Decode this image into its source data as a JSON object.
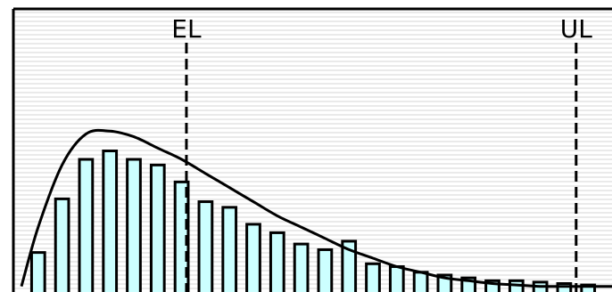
{
  "chart_data": {
    "type": "bar",
    "grid": true,
    "colors": {
      "bar_fill": "#ccffff",
      "bar_stroke": "#000000",
      "grid": "#d4d4d4",
      "curve": "#000000"
    },
    "xlim": [
      0,
      25
    ],
    "ylim": [
      0,
      1.0
    ],
    "bars": {
      "x": [
        1,
        2,
        3,
        4,
        5,
        6,
        7,
        8,
        9,
        10,
        11,
        12,
        13,
        14,
        15,
        16,
        17,
        18,
        19,
        20,
        21,
        22,
        23,
        24
      ],
      "values": [
        0.14,
        0.33,
        0.47,
        0.5,
        0.47,
        0.45,
        0.39,
        0.32,
        0.3,
        0.24,
        0.21,
        0.17,
        0.15,
        0.18,
        0.1,
        0.09,
        0.07,
        0.06,
        0.05,
        0.04,
        0.04,
        0.035,
        0.03,
        0.025
      ]
    },
    "curve": {
      "x": [
        0.3,
        1,
        2,
        3,
        4,
        5,
        6,
        7,
        8,
        9,
        10,
        11,
        12,
        13,
        14,
        15,
        16,
        17,
        18,
        19,
        20,
        21,
        22,
        23,
        24,
        25
      ],
      "y": [
        0.02,
        0.23,
        0.45,
        0.56,
        0.57,
        0.55,
        0.51,
        0.47,
        0.42,
        0.37,
        0.32,
        0.27,
        0.23,
        0.19,
        0.15,
        0.12,
        0.09,
        0.07,
        0.05,
        0.04,
        0.03,
        0.025,
        0.02,
        0.02,
        0.02,
        0.02
      ]
    },
    "markers": [
      {
        "label": "EL",
        "x": 7.2
      },
      {
        "label": "UL",
        "x": 23.5
      }
    ]
  }
}
